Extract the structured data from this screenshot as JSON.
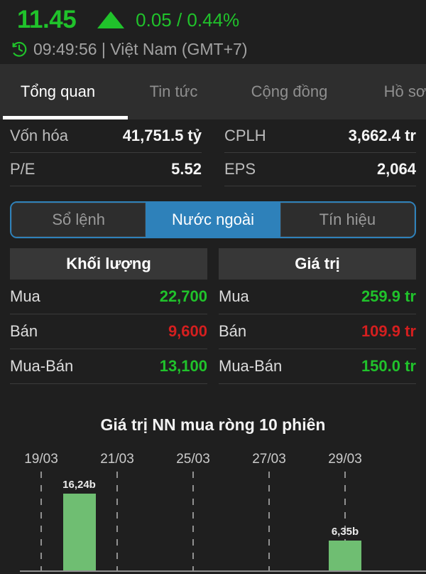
{
  "colors": {
    "green": "#20c22b",
    "red": "#d41f1f",
    "blue": "#2e81ba",
    "bar_green": "#6fbe72"
  },
  "header": {
    "price": "11.45",
    "change": "0.05 / 0.44%",
    "direction": "up",
    "time": "09:49:56 | Việt Nam (GMT+7)"
  },
  "tabs": {
    "items": [
      {
        "label": "Tổng quan",
        "active": true
      },
      {
        "label": "Tin tức",
        "active": false
      },
      {
        "label": "Cộng đồng",
        "active": false
      },
      {
        "label": "Hồ sơ",
        "active": false
      }
    ]
  },
  "stats": {
    "items": [
      {
        "label": "Vốn hóa",
        "value": "41,751.5 tỷ"
      },
      {
        "label": "CPLH",
        "value": "3,662.4 tr"
      },
      {
        "label": "P/E",
        "value": "5.52"
      },
      {
        "label": "EPS",
        "value": "2,064"
      }
    ]
  },
  "segments": {
    "items": [
      {
        "label": "Sổ lệnh",
        "active": false
      },
      {
        "label": "Nước ngoài",
        "active": true
      },
      {
        "label": "Tín hiệu",
        "active": false
      }
    ]
  },
  "foreign": {
    "columns": [
      {
        "header": "Khối lượng",
        "rows": [
          {
            "label": "Mua",
            "value": "22,700",
            "color": "green"
          },
          {
            "label": "Bán",
            "value": "9,600",
            "color": "red"
          },
          {
            "label": "Mua-Bán",
            "value": "13,100",
            "color": "green"
          }
        ]
      },
      {
        "header": "Giá trị",
        "rows": [
          {
            "label": "Mua",
            "value": "259.9 tr",
            "color": "green"
          },
          {
            "label": "Bán",
            "value": "109.9 tr",
            "color": "red"
          },
          {
            "label": "Mua-Bán",
            "value": "150.0 tr",
            "color": "green"
          }
        ]
      }
    ]
  },
  "chart_data": {
    "type": "bar",
    "title": "Giá trị NN mua ròng 10 phiên",
    "unit": "b",
    "sessions_shown": 10,
    "x_ticks": [
      {
        "label": "19/03",
        "index": 1
      },
      {
        "label": "21/03",
        "index": 3
      },
      {
        "label": "25/03",
        "index": 5
      },
      {
        "label": "27/03",
        "index": 7
      },
      {
        "label": "29/03",
        "index": 9
      }
    ],
    "bars": [
      {
        "index": 2,
        "date": "20/03",
        "value": 16.24,
        "label": "16,24b"
      },
      {
        "index": 9,
        "date": "29/03",
        "value": 6.35,
        "label": "6,35b"
      }
    ],
    "grid": "dashed-vertical",
    "legend": "none",
    "baseline": true
  }
}
